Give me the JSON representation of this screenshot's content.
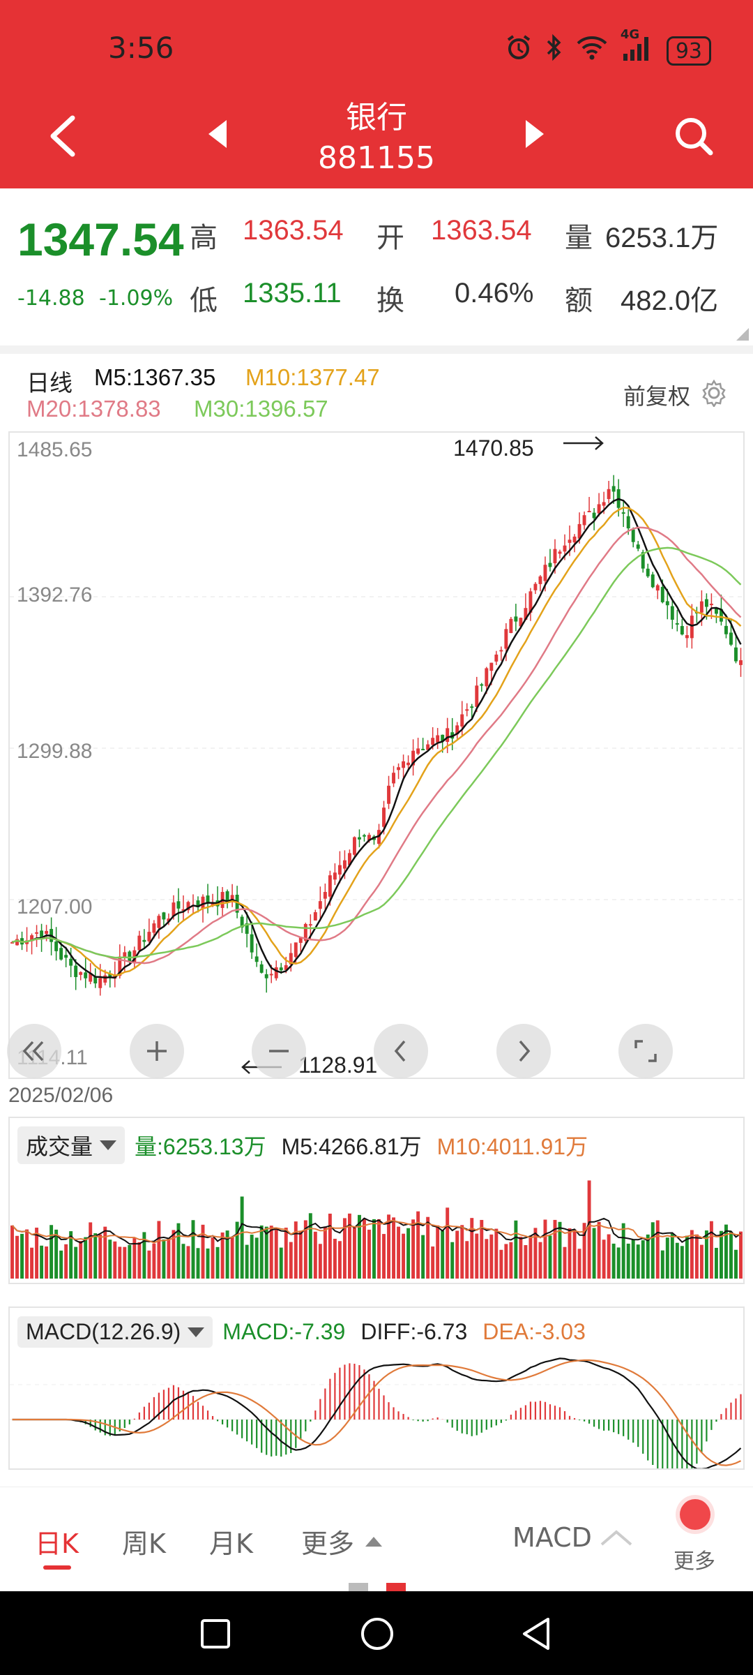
{
  "status_bar": {
    "time": "3:56",
    "network": "4G",
    "battery": "93"
  },
  "header": {
    "name": "银行",
    "code": "881155"
  },
  "quote": {
    "price": "1347.54",
    "change": "-14.88",
    "change_pct": "-1.09%",
    "high_label": "高",
    "high": "1363.54",
    "open_label": "开",
    "open": "1363.54",
    "volume_label": "量",
    "volume": "6253.1万",
    "low_label": "低",
    "low": "1335.11",
    "turnover_label": "换",
    "turnover": "0.46%",
    "amount_label": "额",
    "amount": "482.0亿"
  },
  "ma_legend": {
    "period": "日线",
    "m5": "M5:1367.35",
    "m10": "M10:1377.47",
    "m20": "M20:1378.83",
    "m30": "M30:1396.57",
    "adjust": "前复权"
  },
  "main_chart": {
    "y_labels": [
      "1485.65",
      "1392.76",
      "1299.88",
      "1207.00",
      "1114.11"
    ],
    "high_annotation": "1470.85",
    "low_annotation": "1128.91",
    "start_date": "2025/02/06"
  },
  "volume_panel": {
    "selector": "成交量",
    "vol": "量:6253.13万",
    "m5": "M5:4266.81万",
    "m10": "M10:4011.91万"
  },
  "macd_panel": {
    "selector": "MACD(12.26.9)",
    "macd": "MACD:-7.39",
    "diff": "DIFF:-6.73",
    "dea": "DEA:-3.03"
  },
  "tabs": {
    "day": "日K",
    "week": "周K",
    "month": "月K",
    "more": "更多",
    "indicator": "MACD",
    "more_btn": "更多"
  },
  "colors": {
    "header_red": "#e53235",
    "up": "#e0383b",
    "down": "#1b8f2a",
    "m5": "#111111",
    "m10": "#e3a21a",
    "m20": "#e07a86",
    "m30": "#7cc95a"
  }
}
